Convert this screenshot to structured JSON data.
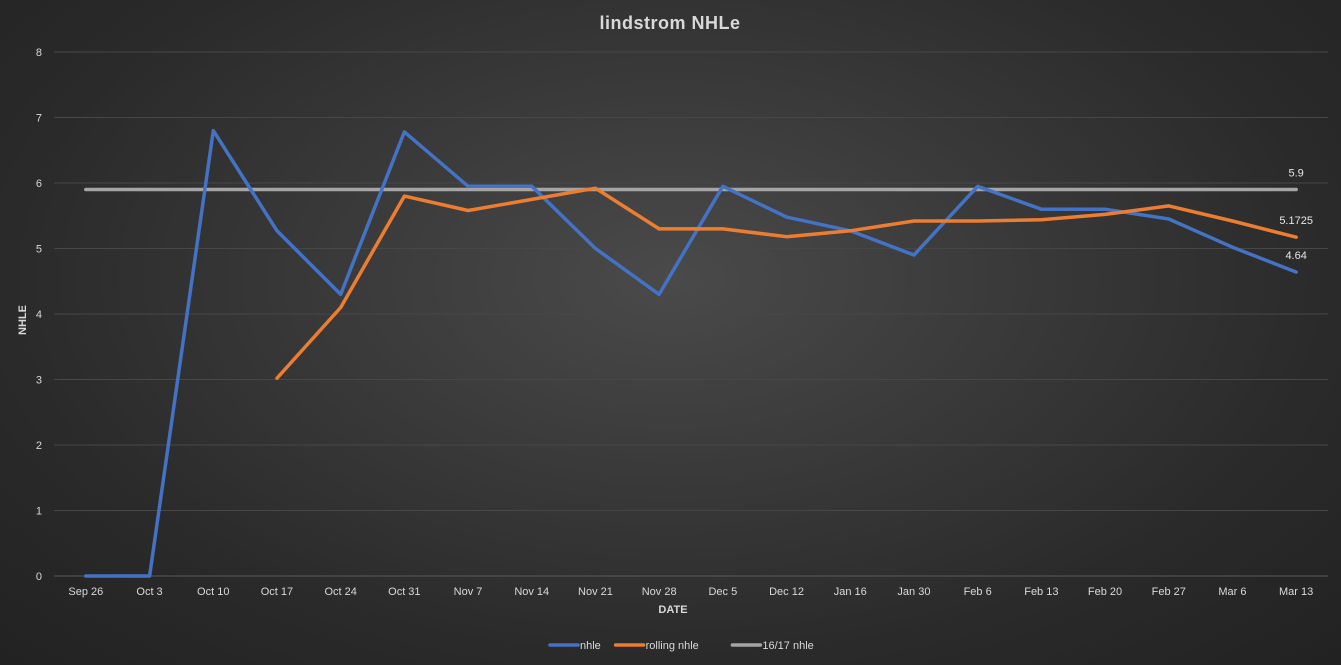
{
  "chart_data": {
    "type": "line",
    "title": "lindstrom  NHLe",
    "xlabel": "DATE",
    "ylabel": "NHLE",
    "ylim": [
      0,
      8
    ],
    "yticks": [
      0,
      1,
      2,
      3,
      4,
      5,
      6,
      7,
      8
    ],
    "grid": "horizontal",
    "legend_position": "bottom",
    "categories": [
      "Sep 26",
      "Oct 3",
      "Oct 10",
      "Oct 17",
      "Oct 24",
      "Oct 31",
      "Nov 7",
      "Nov 14",
      "Nov 21",
      "Nov 28",
      "Dec 5",
      "Dec 12",
      "Jan 16",
      "Jan 30",
      "Feb 6",
      "Feb 13",
      "Feb 20",
      "Feb 27",
      "Mar 6",
      "Mar 13"
    ],
    "series": [
      {
        "name": "nhle",
        "color": "#4472c4",
        "values": [
          0,
          0,
          6.8,
          5.27,
          4.3,
          6.78,
          5.95,
          5.95,
          5.0,
          4.3,
          5.95,
          5.48,
          5.27,
          4.9,
          5.95,
          5.6,
          5.6,
          5.45,
          5.02,
          4.64
        ],
        "end_label": "4.64"
      },
      {
        "name": "rolling nhle",
        "color": "#ed7d31",
        "values": [
          null,
          null,
          null,
          3.02,
          4.1,
          5.8,
          5.58,
          5.75,
          5.92,
          5.3,
          5.3,
          5.18,
          5.27,
          5.42,
          5.42,
          5.44,
          5.52,
          5.65,
          5.42,
          5.1725
        ],
        "end_label": "5.1725"
      },
      {
        "name": "16/17 nhle",
        "color": "#a5a5a5",
        "values": [
          5.9,
          5.9,
          5.9,
          5.9,
          5.9,
          5.9,
          5.9,
          5.9,
          5.9,
          5.9,
          5.9,
          5.9,
          5.9,
          5.9,
          5.9,
          5.9,
          5.9,
          5.9,
          5.9,
          5.9
        ],
        "end_label": "5.9"
      }
    ]
  }
}
